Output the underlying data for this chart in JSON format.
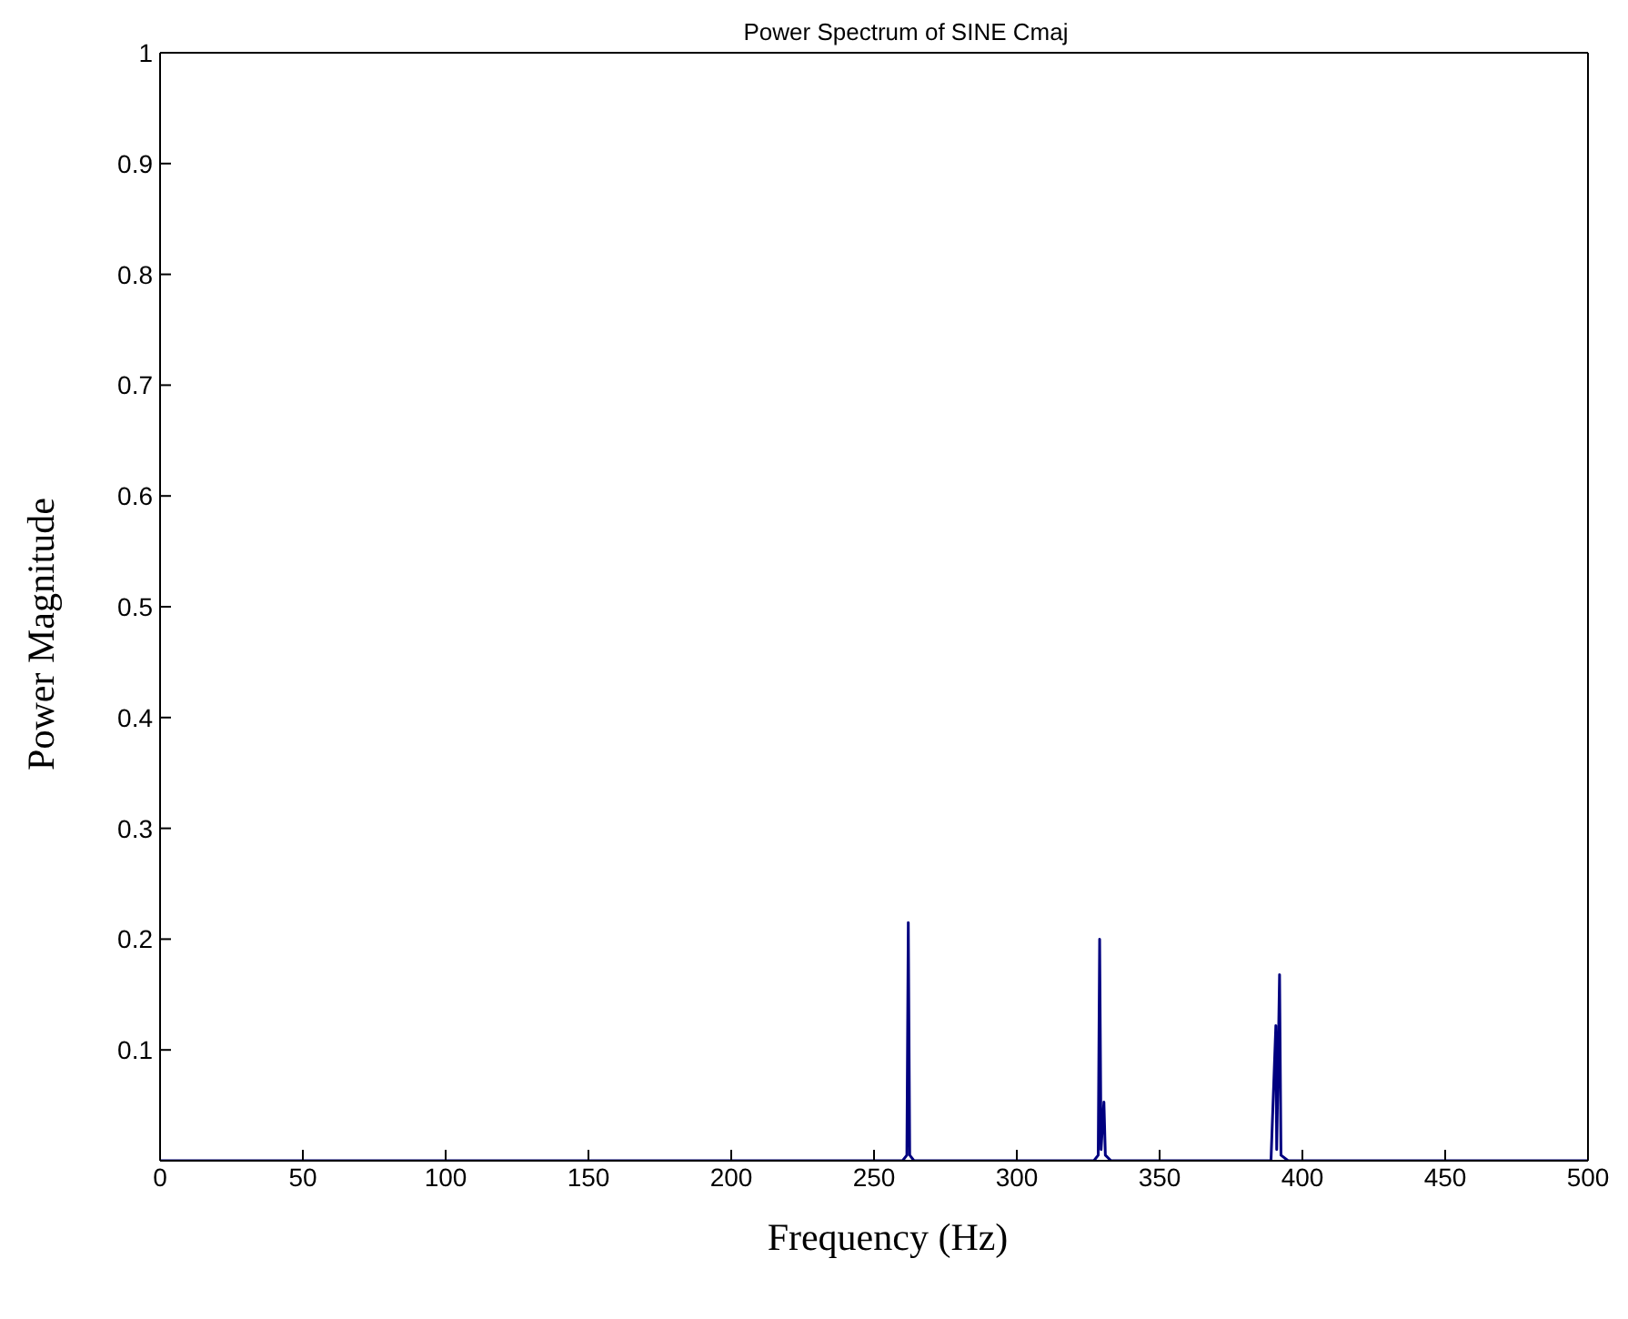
{
  "chart_data": {
    "type": "line",
    "title": "Power Spectrum of SINE Cmaj",
    "xlabel": "Frequency (Hz)",
    "ylabel": "Power Magnitude",
    "x": [
      0,
      260,
      261.5,
      262,
      262.5,
      264,
      327,
      328.5,
      329,
      329.5,
      330.5,
      331,
      333,
      389,
      390.7,
      391,
      392,
      392.5,
      395,
      500
    ],
    "series": [
      {
        "color": "#000080",
        "values": [
          0,
          0,
          0.005,
          0.215,
          0.005,
          0,
          0,
          0.005,
          0.2,
          0.01,
          0.053,
          0.005,
          0,
          0,
          0.122,
          0.01,
          0.168,
          0.005,
          0,
          0
        ]
      }
    ],
    "xlim": [
      0,
      500
    ],
    "xticks": [
      0,
      50,
      100,
      150,
      200,
      250,
      300,
      350,
      400,
      450,
      500
    ],
    "ylim": [
      0,
      1
    ],
    "yticks": [
      0.1,
      0.2,
      0.3,
      0.4,
      0.5,
      0.6,
      0.7,
      0.8,
      0.9,
      1
    ],
    "grid": false,
    "legend": false,
    "marker": "none",
    "line_style": "solid"
  }
}
